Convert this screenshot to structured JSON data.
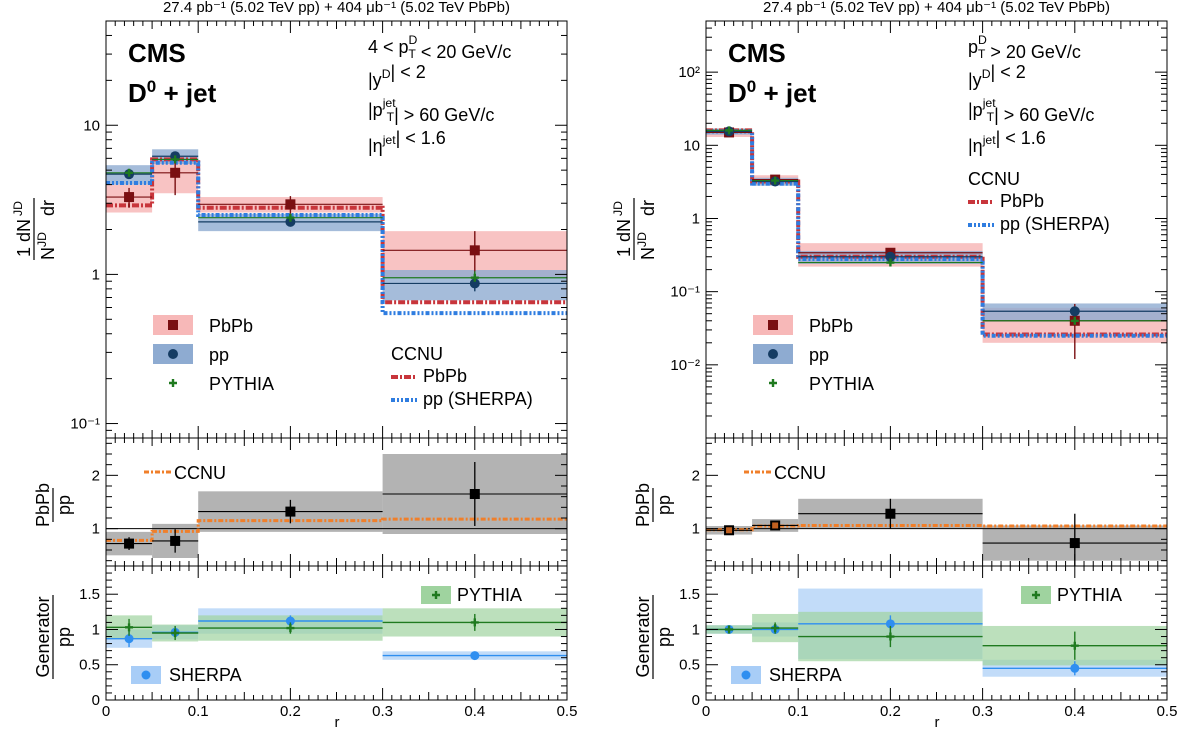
{
  "chart_data": [
    {
      "type": "step",
      "panel": "left",
      "header": "27.4 pb⁻¹ (5.02 TeV pp) + 404 μb⁻¹ (5.02 TeV PbPb)",
      "experiment": "CMS",
      "process": "D⁰ + jet",
      "cuts": [
        "4 < p_T^D < 20 GeV/c",
        "|y^D| < 2",
        "|p_T^jet| > 60 GeV/c",
        "|η^jet| < 1.6"
      ],
      "xlabel": "r",
      "xlim": [
        0,
        0.5
      ],
      "x_ticks": [
        "0",
        "0.1",
        "0.2",
        "0.3",
        "0.4",
        "0.5"
      ],
      "bin_edges": [
        0,
        0.05,
        0.1,
        0.3,
        0.5
      ],
      "bin_centers": [
        0.025,
        0.075,
        0.2,
        0.4
      ],
      "top": {
        "ylabel": "1/N_JD dN_JD/dr",
        "yscale": "log",
        "ylim": [
          0.08,
          50
        ],
        "y_ticks": [
          "10⁻¹",
          "1",
          "10"
        ],
        "series": [
          {
            "name": "PbPb",
            "values": [
              3.3,
              4.8,
              2.95,
              1.45
            ],
            "stat_err": [
              0.5,
              1.4,
              0.4,
              0.5
            ],
            "syst": [
              0.7,
              1.3,
              0.35,
              0.5
            ]
          },
          {
            "name": "pp",
            "values": [
              4.7,
              6.2,
              2.25,
              0.87
            ],
            "stat_err": [
              0.3,
              0.4,
              0.1,
              0.1
            ],
            "syst": [
              0.7,
              0.7,
              0.3,
              0.2
            ]
          },
          {
            "name": "PYTHIA",
            "values": [
              4.8,
              5.9,
              2.4,
              0.95
            ],
            "stat_err": [
              0.2,
              0.2,
              0.1,
              0.1
            ]
          }
        ],
        "models": [
          {
            "name": "PbPb",
            "group": "CCNU",
            "values": [
              2.9,
              5.9,
              2.8,
              0.65
            ]
          },
          {
            "name": "pp (SHERPA)",
            "group": "CCNU",
            "values": [
              4.1,
              5.6,
              2.5,
              0.55
            ]
          }
        ]
      },
      "ratio": {
        "ylabel": "PbPb/pp",
        "ylim": [
          0.3,
          2.7
        ],
        "y_ticks": [
          "1",
          "2"
        ],
        "data": {
          "values": [
            0.72,
            0.77,
            1.32,
            1.65
          ],
          "stat_err": [
            0.12,
            0.22,
            0.22,
            0.6
          ],
          "syst": [
            0.22,
            0.32,
            0.38,
            0.75
          ]
        },
        "model": {
          "name": "CCNU",
          "values": [
            0.78,
            0.95,
            1.15,
            1.18
          ]
        }
      },
      "generator": {
        "ylabel": "Generator/pp",
        "ylim": [
          0,
          1.9
        ],
        "y_ticks": [
          "0",
          "0.5",
          "1",
          "1.5"
        ],
        "series": [
          {
            "name": "PYTHIA",
            "values": [
              1.03,
              0.95,
              1.02,
              1.1
            ],
            "stat_err": [
              0.12,
              0.1,
              0.08,
              0.12
            ],
            "syst": [
              0.17,
              0.12,
              0.18,
              0.2
            ]
          },
          {
            "name": "SHERPA",
            "values": [
              0.87,
              0.96,
              1.12,
              0.63
            ],
            "stat_err": [
              0.12,
              0.08,
              0.08,
              0.05
            ],
            "syst": [
              0.13,
              0.1,
              0.18,
              0.06
            ]
          }
        ]
      }
    },
    {
      "type": "step",
      "panel": "right",
      "header": "27.4 pb⁻¹ (5.02 TeV pp) + 404 μb⁻¹ (5.02 TeV PbPb)",
      "experiment": "CMS",
      "process": "D⁰ + jet",
      "cuts": [
        "p_T^D > 20 GeV/c",
        "|y^D| < 2",
        "|p_T^jet| > 60 GeV/c",
        "|η^jet| < 1.6"
      ],
      "xlabel": "r",
      "xlim": [
        0,
        0.5
      ],
      "x_ticks": [
        "0",
        "0.1",
        "0.2",
        "0.3",
        "0.4",
        "0.5"
      ],
      "bin_edges": [
        0,
        0.05,
        0.1,
        0.3,
        0.5
      ],
      "bin_centers": [
        0.025,
        0.075,
        0.2,
        0.4
      ],
      "top": {
        "ylabel": "1/N_JD dN_JD/dr",
        "yscale": "log",
        "ylim": [
          0.001,
          500
        ],
        "y_ticks": [
          "10⁻²",
          "10⁻¹",
          "1",
          "10",
          "10²"
        ],
        "series": [
          {
            "name": "PbPb",
            "values": [
              15,
              3.4,
              0.34,
              0.04
            ],
            "stat_err": [
              0.6,
              0.3,
              0.05,
              0.028
            ],
            "syst": [
              2,
              0.5,
              0.12,
              0.02
            ]
          },
          {
            "name": "pp",
            "values": [
              15.5,
              3.2,
              0.3,
              0.054
            ],
            "stat_err": [
              0.3,
              0.1,
              0.02,
              0.006
            ],
            "syst": [
              1.5,
              0.4,
              0.06,
              0.015
            ]
          },
          {
            "name": "PYTHIA",
            "values": [
              16,
              3.3,
              0.25,
              0.04
            ],
            "stat_err": [
              0.2,
              0.1,
              0.01,
              0.003
            ]
          }
        ],
        "models": [
          {
            "name": "PbPb",
            "group": "CCNU",
            "values": [
              16,
              3.2,
              0.3,
              0.026
            ]
          },
          {
            "name": "pp (SHERPA)",
            "group": "CCNU",
            "values": [
              15.5,
              3.0,
              0.28,
              0.025
            ]
          }
        ]
      },
      "ratio": {
        "ylabel": "PbPb/pp",
        "ylim": [
          0.3,
          2.7
        ],
        "y_ticks": [
          "1",
          "2"
        ],
        "data": {
          "values": [
            0.97,
            1.06,
            1.28,
            0.73
          ],
          "stat_err": [
            0.05,
            0.08,
            0.28,
            0.55
          ],
          "syst": [
            0.08,
            0.12,
            0.28,
            0.33
          ]
        },
        "model": {
          "name": "CCNU",
          "values": [
            0.98,
            1.05,
            1.06,
            1.05
          ]
        }
      },
      "generator": {
        "ylabel": "Generator/pp",
        "ylim": [
          0,
          1.9
        ],
        "y_ticks": [
          "0",
          "0.5",
          "1",
          "1.5"
        ],
        "series": [
          {
            "name": "PYTHIA",
            "values": [
              1.0,
              1.02,
              0.9,
              0.77
            ],
            "stat_err": [
              0.05,
              0.08,
              0.15,
              0.2
            ],
            "syst": [
              0.06,
              0.2,
              0.35,
              0.28
            ]
          },
          {
            "name": "SHERPA",
            "values": [
              1.0,
              1.0,
              1.08,
              0.45
            ],
            "stat_err": [
              0.05,
              0.05,
              0.12,
              0.1
            ],
            "syst": [
              0.06,
              0.1,
              0.5,
              0.12
            ]
          }
        ]
      }
    }
  ],
  "legend": {
    "pbpb": "PbPb",
    "pp": "pp",
    "pythia": "PYTHIA",
    "sherpa": "SHERPA",
    "ccnu": "CCNU",
    "ccnu_pbpb": "PbPb",
    "ccnu_pp": "pp (SHERPA)"
  },
  "colors": {
    "pbpb_marker": "#7a0f12",
    "pbpb_band": "#f7b8b8",
    "pp_marker": "#153c63",
    "pp_band": "#8eabd1",
    "pythia": "#1f7a1f",
    "pythia_band": "#9fd39f",
    "sherpa": "#2f8ff0",
    "sherpa_band": "#a8cdf7",
    "ratio_band": "#a6a6a6",
    "ccnu_pbpb": "#c8353b",
    "ccnu_pp": "#2f7de0",
    "ccnu_ratio": "#f07f2a"
  }
}
